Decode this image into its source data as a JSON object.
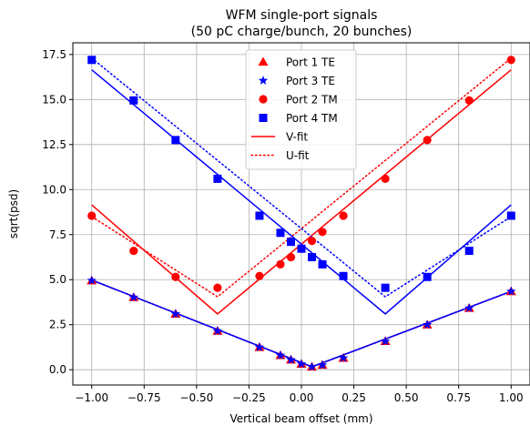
{
  "chart_data": {
    "type": "line",
    "title": "WFM single-port signals",
    "subtitle": "(50 pC charge/bunch, 20 bunches)",
    "xlabel": "Vertical beam offset (mm)",
    "ylabel": "sqrt(psd)",
    "xlim": [
      -1.09,
      1.09
    ],
    "ylim": [
      -0.85,
      18.15
    ],
    "xticks": [
      -1.0,
      -0.75,
      -0.5,
      -0.25,
      0.0,
      0.25,
      0.5,
      0.75,
      1.0
    ],
    "xtick_labels": [
      "−1.00",
      "−0.75",
      "−0.50",
      "−0.25",
      "0.00",
      "0.25",
      "0.50",
      "0.75",
      "1.00"
    ],
    "yticks": [
      0.0,
      2.5,
      5.0,
      7.5,
      10.0,
      12.5,
      15.0,
      17.5
    ],
    "ytick_labels": [
      "0.0",
      "2.5",
      "5.0",
      "7.5",
      "10.0",
      "12.5",
      "15.0",
      "17.5"
    ],
    "grid": true,
    "legend_position": "top-center",
    "colors": {
      "red": "#ff0000",
      "blue": "#0000ff"
    },
    "series": [
      {
        "name": "Port 1 TE",
        "kind": "markers",
        "marker": "triangle",
        "color": "#ff0000",
        "x": [
          -1.0,
          -0.8,
          -0.6,
          -0.4,
          -0.2,
          -0.1,
          -0.05,
          0.0,
          0.05,
          0.1,
          0.2,
          0.4,
          0.6,
          0.8,
          1.0
        ],
        "y": [
          4.95,
          4.02,
          3.1,
          2.15,
          1.25,
          0.8,
          0.55,
          0.32,
          0.16,
          0.26,
          0.65,
          1.58,
          2.5,
          3.42,
          4.35
        ]
      },
      {
        "name": "Port 3 TE",
        "kind": "markers",
        "marker": "star",
        "color": "#0000ff",
        "x": [
          -1.0,
          -0.8,
          -0.6,
          -0.4,
          -0.2,
          -0.1,
          -0.05,
          0.0,
          0.05,
          0.1,
          0.2,
          0.4,
          0.6,
          0.8,
          1.0
        ],
        "y": [
          4.95,
          4.02,
          3.1,
          2.15,
          1.25,
          0.8,
          0.55,
          0.32,
          0.16,
          0.26,
          0.65,
          1.58,
          2.5,
          3.42,
          4.35
        ]
      },
      {
        "name": "Port 2 TM",
        "kind": "markers",
        "marker": "circle",
        "color": "#ff0000",
        "x": [
          -1.0,
          -0.8,
          -0.6,
          -0.4,
          -0.2,
          -0.1,
          -0.05,
          0.0,
          0.05,
          0.1,
          0.2,
          0.4,
          0.6,
          0.8,
          1.0
        ],
        "y": [
          8.55,
          6.6,
          5.15,
          4.55,
          5.2,
          5.85,
          6.25,
          6.72,
          7.15,
          7.65,
          8.55,
          10.6,
          12.75,
          14.95,
          17.2
        ]
      },
      {
        "name": "Port 4 TM",
        "kind": "markers",
        "marker": "square",
        "color": "#0000ff",
        "x": [
          -1.0,
          -0.8,
          -0.6,
          -0.4,
          -0.2,
          -0.1,
          -0.05,
          0.0,
          0.05,
          0.1,
          0.2,
          0.4,
          0.6,
          0.8,
          1.0
        ],
        "y": [
          17.2,
          14.95,
          12.75,
          10.6,
          8.55,
          7.6,
          7.1,
          6.72,
          6.25,
          5.85,
          5.2,
          4.55,
          5.15,
          6.6,
          8.55
        ]
      },
      {
        "name": "V-fit",
        "kind": "line",
        "dash": "solid",
        "color": "#ff0000",
        "x": [
          -1.0,
          -0.4,
          1.0
        ],
        "y": [
          9.15,
          3.1,
          16.65
        ]
      },
      {
        "name": "U-fit",
        "kind": "line",
        "dash": "dotted",
        "color": "#ff0000",
        "x": [
          -1.0,
          -0.4,
          1.0
        ],
        "y": [
          8.5,
          4.05,
          17.3
        ]
      },
      {
        "name": "",
        "kind": "line",
        "dash": "solid",
        "color": "#0000ff",
        "x": [
          -1.0,
          0.4,
          1.0
        ],
        "y": [
          16.65,
          3.1,
          9.15
        ]
      },
      {
        "name": "",
        "kind": "line",
        "dash": "dotted",
        "color": "#0000ff",
        "x": [
          -1.0,
          0.4,
          1.0
        ],
        "y": [
          17.3,
          4.05,
          8.5
        ]
      },
      {
        "name": "",
        "kind": "line",
        "dash": "solid",
        "color": "#ff0000",
        "x": [
          -1.0,
          0.05,
          1.0
        ],
        "y": [
          4.98,
          0.16,
          4.35
        ]
      },
      {
        "name": "",
        "kind": "line",
        "dash": "dotted",
        "color": "#ff0000",
        "x": [
          -1.0,
          0.05,
          1.0
        ],
        "y": [
          4.98,
          0.16,
          4.35
        ]
      },
      {
        "name": "",
        "kind": "line",
        "dash": "solid",
        "color": "#0000ff",
        "x": [
          -1.0,
          0.05,
          1.0
        ],
        "y": [
          4.98,
          0.16,
          4.35
        ]
      },
      {
        "name": "",
        "kind": "line",
        "dash": "dotted",
        "color": "#0000ff",
        "x": [
          -1.0,
          0.05,
          1.0
        ],
        "y": [
          4.98,
          0.16,
          4.35
        ]
      }
    ]
  }
}
